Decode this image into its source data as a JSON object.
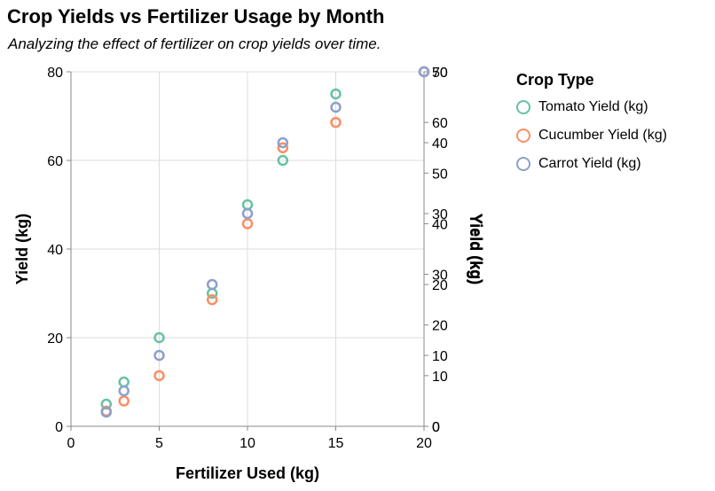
{
  "chart_data": {
    "type": "scatter",
    "title": "Crop Yields vs Fertilizer Usage by Month",
    "subtitle": "Analyzing the effect of fertilizer on crop yields over time.",
    "xlabel": "Fertilizer Used (kg)",
    "ylabel": "Yield (kg)",
    "xlim": [
      0,
      20
    ],
    "x_ticks": [
      0,
      5,
      10,
      15,
      20
    ],
    "grid": true,
    "legend_title": "Crop Type",
    "legend_position": "right",
    "x": [
      2,
      3,
      5,
      8,
      10,
      12,
      15,
      20
    ],
    "axes": [
      {
        "id": "left",
        "orient": "left",
        "title": "Yield (kg)",
        "ylim": [
          0,
          80
        ],
        "ticks": [
          0,
          20,
          40,
          60,
          80
        ],
        "grid": true
      },
      {
        "id": "right1",
        "orient": "right",
        "title": "Yield (kg)",
        "ylim": [
          0,
          70
        ],
        "ticks": [
          0,
          10,
          20,
          30,
          40,
          50,
          60,
          70
        ],
        "grid": false
      },
      {
        "id": "right2",
        "orient": "right",
        "title": "Yield (kg)",
        "ylim": [
          0,
          50
        ],
        "ticks": [
          0,
          10,
          20,
          30,
          40,
          50
        ],
        "grid": false
      }
    ],
    "series": [
      {
        "name": "Tomato Yield (kg)",
        "color": "#66c2a5",
        "axis": "left",
        "values": [
          5,
          10,
          20,
          30,
          50,
          60,
          75,
          80
        ]
      },
      {
        "name": "Cucumber Yield (kg)",
        "color": "#fc8d62",
        "axis": "right1",
        "values": [
          3,
          5,
          10,
          25,
          40,
          55,
          60,
          70
        ]
      },
      {
        "name": "Carrot Yield (kg)",
        "color": "#8da0cb",
        "axis": "right2",
        "values": [
          2,
          5,
          10,
          20,
          30,
          40,
          45,
          50
        ]
      }
    ]
  }
}
